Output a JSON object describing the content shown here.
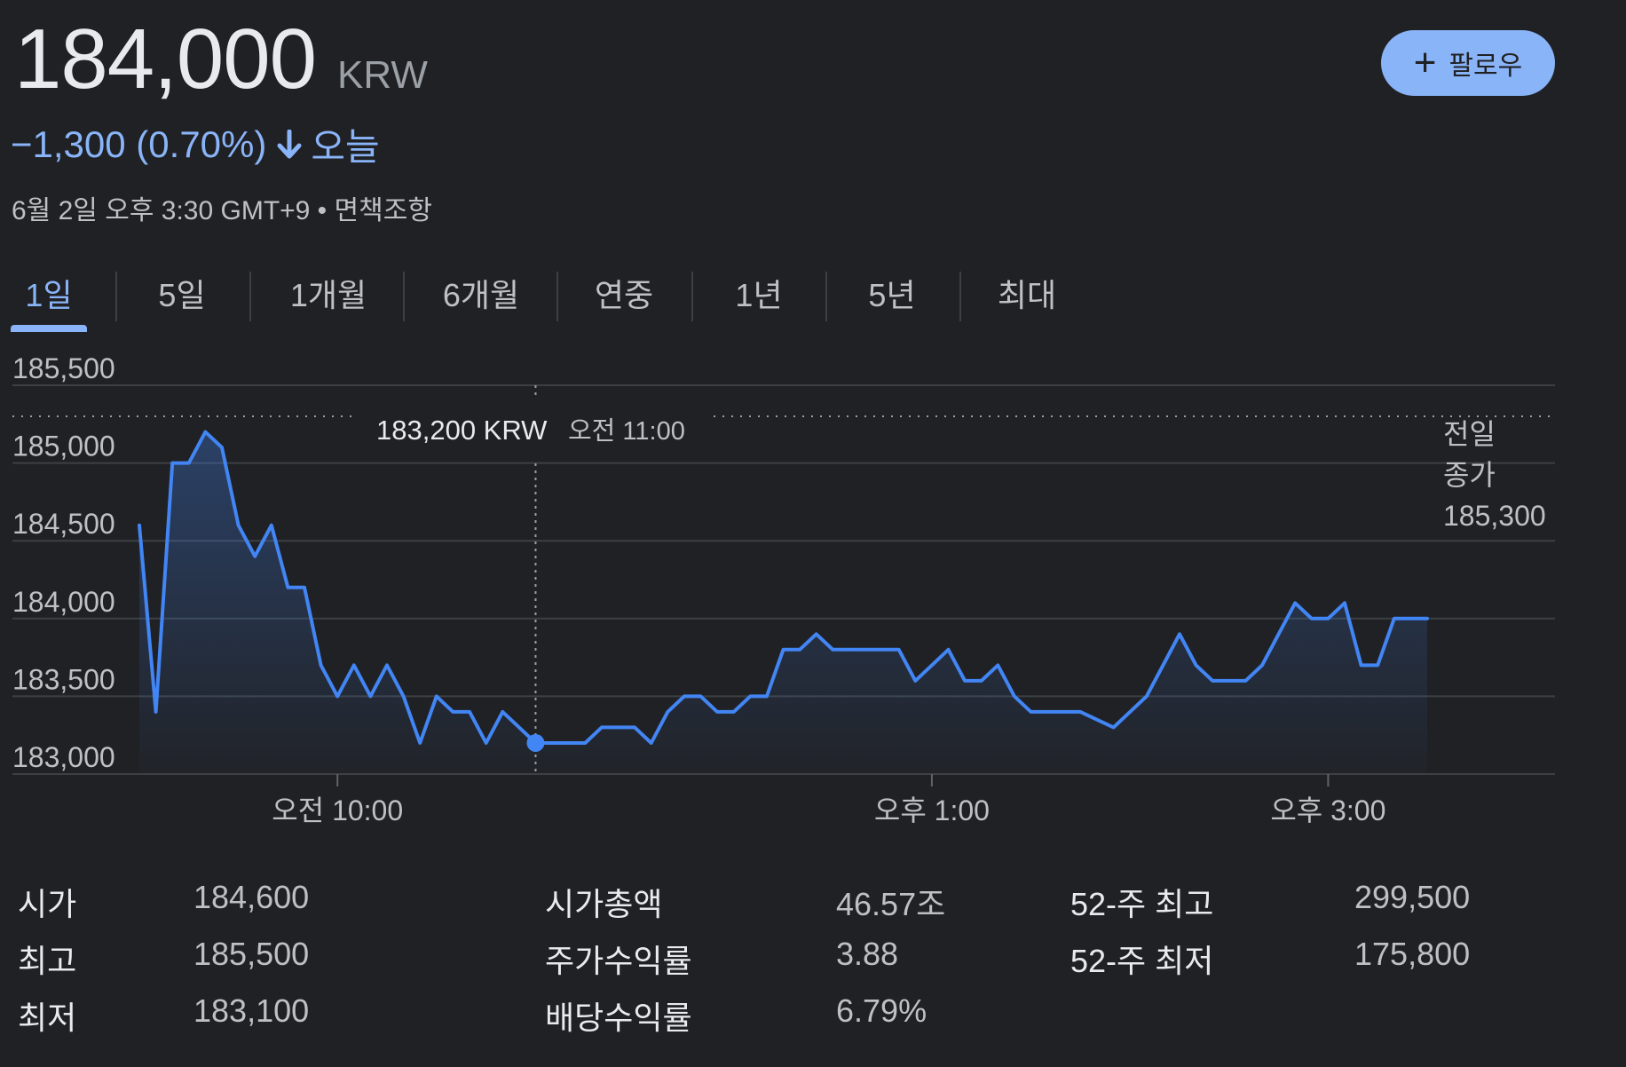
{
  "quote": {
    "price": "184,000",
    "currency": "KRW",
    "change": "−1,300 (0.70%)",
    "period": "오늘",
    "timestamp": "6월 2일 오후 3:30 GMT+9 • 면책조항",
    "accent_color": "#8ab4f8"
  },
  "follow_button": {
    "label": "팔로우",
    "icon": "plus-icon"
  },
  "tabs": [
    {
      "label": "1일",
      "active": true
    },
    {
      "label": "5일",
      "active": false
    },
    {
      "label": "1개월",
      "active": false
    },
    {
      "label": "6개월",
      "active": false
    },
    {
      "label": "연중",
      "active": false
    },
    {
      "label": "1년",
      "active": false
    },
    {
      "label": "5년",
      "active": false
    },
    {
      "label": "최대",
      "active": false
    }
  ],
  "chart_data": {
    "type": "line",
    "ylim": [
      183000,
      185500
    ],
    "y_ticks": [
      185500,
      185000,
      184500,
      184000,
      183500,
      183000
    ],
    "y_tick_labels": [
      "185,500",
      "185,000",
      "184,500",
      "184,000",
      "183,500",
      "183,000"
    ],
    "x_range": [
      "09:00",
      "15:30"
    ],
    "x_ticks": [
      {
        "time": "10:00",
        "label": "오전 10:00"
      },
      {
        "time": "13:00",
        "label": "오후 1:00"
      },
      {
        "time": "15:00",
        "label": "오후 3:00"
      }
    ],
    "grid": true,
    "line_color": "#4285f4",
    "previous_close": {
      "value": 185300,
      "label_line1": "전일",
      "label_line2": "종가",
      "value_label": "185,300"
    },
    "tooltip": {
      "time": "11:00",
      "value": 183200,
      "price_text": "183,200 KRW",
      "time_text": "오전 11:00"
    },
    "series": [
      {
        "x": [
          "09:00",
          "09:05",
          "09:10",
          "09:15",
          "09:20",
          "09:25",
          "09:30",
          "09:35",
          "09:40",
          "09:45",
          "09:50",
          "09:55",
          "10:00",
          "10:05",
          "10:10",
          "10:15",
          "10:20",
          "10:25",
          "10:30",
          "10:35",
          "10:40",
          "10:45",
          "10:50",
          "10:55",
          "11:00",
          "11:05",
          "11:10",
          "11:15",
          "11:20",
          "11:25",
          "11:30",
          "11:35",
          "11:40",
          "11:45",
          "11:50",
          "11:55",
          "12:00",
          "12:05",
          "12:10",
          "12:15",
          "12:20",
          "12:25",
          "12:30",
          "12:35",
          "12:40",
          "12:45",
          "12:50",
          "12:55",
          "13:00",
          "13:05",
          "13:10",
          "13:15",
          "13:20",
          "13:25",
          "13:30",
          "13:35",
          "13:40",
          "13:45",
          "13:50",
          "13:55",
          "14:00",
          "14:05",
          "14:10",
          "14:15",
          "14:20",
          "14:25",
          "14:30",
          "14:35",
          "14:40",
          "14:45",
          "14:50",
          "14:55",
          "15:00",
          "15:05",
          "15:10",
          "15:15",
          "15:20",
          "15:25",
          "15:30"
        ],
        "values": [
          184600,
          183400,
          185000,
          185000,
          185200,
          185100,
          184600,
          184400,
          184600,
          184200,
          184200,
          183700,
          183500,
          183700,
          183500,
          183700,
          183500,
          183200,
          183500,
          183400,
          183400,
          183200,
          183400,
          183300,
          183200,
          183200,
          183200,
          183200,
          183300,
          183300,
          183300,
          183200,
          183400,
          183500,
          183500,
          183400,
          183400,
          183500,
          183500,
          183800,
          183800,
          183900,
          183800,
          183800,
          183800,
          183800,
          183800,
          183600,
          183700,
          183800,
          183600,
          183600,
          183700,
          183500,
          183400,
          183400,
          183400,
          183400,
          183350,
          183300,
          183400,
          183500,
          183700,
          183900,
          183700,
          183600,
          183600,
          183600,
          183700,
          183900,
          184100,
          184000,
          184000,
          184100,
          183700,
          183700,
          184000,
          184000,
          184000
        ]
      }
    ]
  },
  "stats": [
    [
      {
        "label": "시가",
        "value": "184,600"
      },
      {
        "label": "시가총액",
        "value": "46.57조"
      },
      {
        "label": "52-주 최고",
        "value": "299,500"
      }
    ],
    [
      {
        "label": "최고",
        "value": "185,500"
      },
      {
        "label": "주가수익률",
        "value": "3.88"
      },
      {
        "label": "52-주 최저",
        "value": "175,800"
      }
    ],
    [
      {
        "label": "최저",
        "value": "183,100"
      },
      {
        "label": "배당수익률",
        "value": "6.79%"
      }
    ]
  ]
}
